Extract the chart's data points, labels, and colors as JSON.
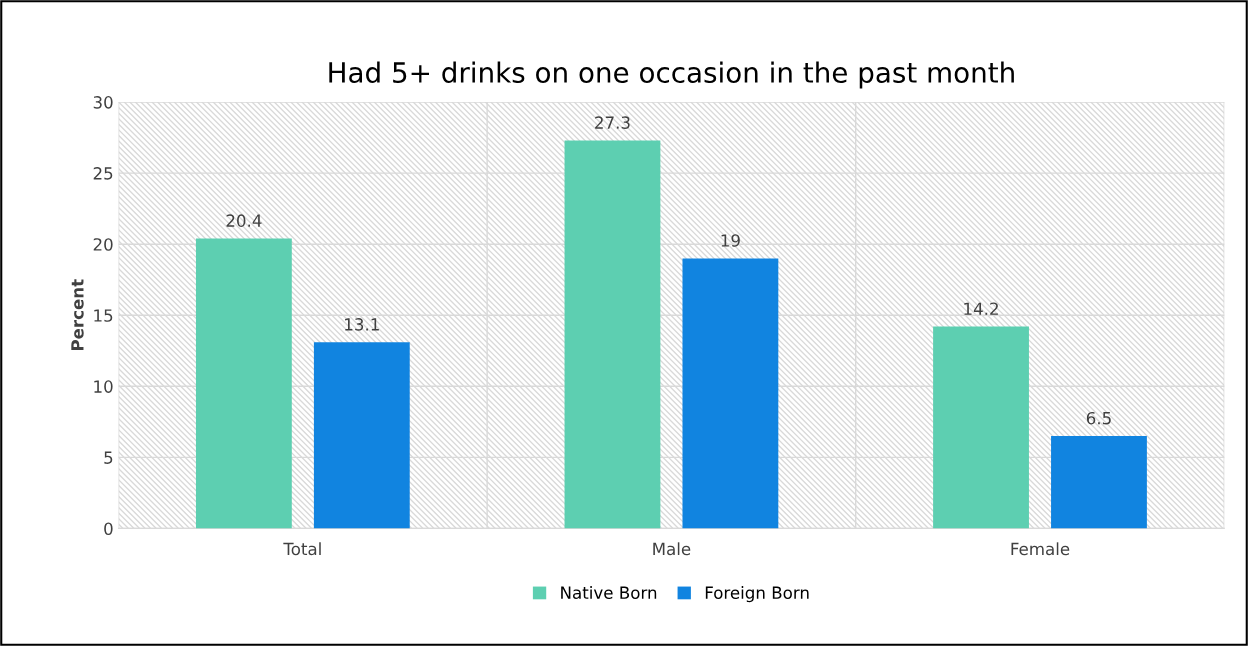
{
  "chart_data": {
    "type": "bar",
    "title": "Had 5+ drinks on one occasion in the past month",
    "ylabel": "Percent",
    "categories": [
      "Total",
      "Male",
      "Female"
    ],
    "series": [
      {
        "name": "Native Born",
        "color": "#5dcfb1",
        "values": [
          20.4,
          27.3,
          14.2
        ]
      },
      {
        "name": "Foreign Born",
        "color": "#1184e0",
        "values": [
          13.1,
          19,
          6.5
        ]
      }
    ],
    "ylim": [
      0,
      30
    ],
    "yticks": [
      0,
      5,
      10,
      15,
      20,
      25,
      30
    ],
    "grid": true,
    "legend": "bottom",
    "data_labels": true
  }
}
